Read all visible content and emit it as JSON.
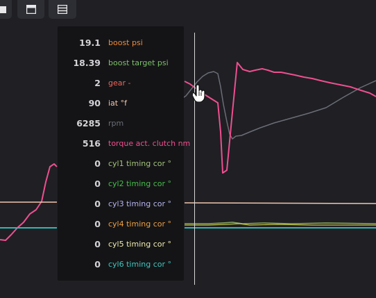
{
  "toolbar": {
    "buttons": [
      {
        "name": "view-single-icon"
      },
      {
        "name": "view-panel-icon"
      },
      {
        "name": "view-stacked-icon"
      }
    ]
  },
  "tooltip": {
    "rows": [
      {
        "value": "19.1",
        "label": "boost psi",
        "color": "#f08a3c"
      },
      {
        "value": "18.39",
        "label": "boost target psi",
        "color": "#7cc06a"
      },
      {
        "value": "2",
        "label": "gear -",
        "color": "#f0645a"
      },
      {
        "value": "90",
        "label": "iat °f",
        "color": "#f2c7ad"
      },
      {
        "value": "6285",
        "label": "rpm",
        "color": "#6b6e77"
      },
      {
        "value": "516",
        "label": "torque act. clutch nm",
        "color": "#ef4f8f"
      },
      {
        "value": "0",
        "label": "cyl1 timing cor °",
        "color": "#a4c47a"
      },
      {
        "value": "0",
        "label": "cyl2 timing cor °",
        "color": "#44c04a"
      },
      {
        "value": "0",
        "label": "cyl3 timing cor °",
        "color": "#b8b6f4"
      },
      {
        "value": "0",
        "label": "cyl4 timing cor °",
        "color": "#f0a040"
      },
      {
        "value": "0",
        "label": "cyl5 timing cor °",
        "color": "#f2eeb0"
      },
      {
        "value": "0",
        "label": "cyl6 timing cor °",
        "color": "#3ec8c0"
      }
    ]
  },
  "chart_data": {
    "type": "line",
    "cursor_x": 280,
    "x_range": [
      0,
      542
    ],
    "y_range": [
      0,
      429
    ],
    "series": [
      {
        "key": "rpm",
        "color": "#6b6e77",
        "width": 1.5,
        "points": [
          [
            262,
            142
          ],
          [
            268,
            138
          ],
          [
            276,
            128
          ],
          [
            284,
            118
          ],
          [
            292,
            110
          ],
          [
            300,
            105
          ],
          [
            308,
            103
          ],
          [
            314,
            106
          ],
          [
            318,
            125
          ],
          [
            322,
            150
          ],
          [
            327,
            175
          ],
          [
            331,
            193
          ],
          [
            335,
            200
          ],
          [
            340,
            196
          ],
          [
            348,
            195
          ],
          [
            360,
            190
          ],
          [
            375,
            184
          ],
          [
            395,
            177
          ],
          [
            420,
            170
          ],
          [
            445,
            163
          ],
          [
            470,
            155
          ],
          [
            495,
            140
          ],
          [
            520,
            126
          ],
          [
            542,
            116
          ]
        ]
      },
      {
        "key": "torque",
        "color": "#ef4f8f",
        "width": 2,
        "points": [
          [
            0,
            345
          ],
          [
            8,
            346
          ],
          [
            16,
            338
          ],
          [
            25,
            328
          ],
          [
            34,
            320
          ],
          [
            43,
            308
          ],
          [
            52,
            302
          ],
          [
            60,
            290
          ],
          [
            66,
            262
          ],
          [
            72,
            240
          ],
          [
            78,
            236
          ],
          [
            82,
            240
          ]
        ]
      },
      {
        "key": "torque",
        "color": "#ef4f8f",
        "width": 2,
        "points": [
          [
            266,
            117
          ],
          [
            274,
            121
          ],
          [
            282,
            127
          ],
          [
            290,
            133
          ],
          [
            298,
            138
          ],
          [
            306,
            143
          ],
          [
            314,
            148
          ],
          [
            318,
            190
          ],
          [
            321,
            249
          ],
          [
            327,
            245
          ],
          [
            334,
            172
          ],
          [
            342,
            90
          ],
          [
            350,
            100
          ],
          [
            360,
            103
          ],
          [
            368,
            101
          ],
          [
            378,
            99
          ],
          [
            386,
            101
          ],
          [
            395,
            104
          ],
          [
            405,
            104
          ],
          [
            415,
            106
          ],
          [
            425,
            108
          ],
          [
            438,
            111
          ],
          [
            450,
            113
          ],
          [
            462,
            116
          ],
          [
            475,
            119
          ],
          [
            490,
            122
          ],
          [
            505,
            125
          ],
          [
            520,
            130
          ],
          [
            533,
            134
          ],
          [
            542,
            139
          ]
        ]
      },
      {
        "key": "iat",
        "color": "#f2c7ad",
        "width": 1.5,
        "points": [
          [
            0,
            291
          ],
          [
            82,
            291
          ]
        ]
      },
      {
        "key": "iat",
        "color": "#f2c7ad",
        "width": 1.5,
        "points": [
          [
            266,
            292
          ],
          [
            542,
            293
          ]
        ]
      },
      {
        "key": "cyl-timing-a",
        "color": "#8aa860",
        "width": 1.5,
        "points": [
          [
            266,
            322
          ],
          [
            300,
            322
          ],
          [
            320,
            321
          ],
          [
            335,
            320
          ],
          [
            350,
            322
          ],
          [
            380,
            321
          ],
          [
            420,
            322
          ],
          [
            470,
            321
          ],
          [
            542,
            322
          ]
        ]
      },
      {
        "key": "cyl-timing-b",
        "color": "#c0c840",
        "width": 1.2,
        "points": [
          [
            266,
            324
          ],
          [
            300,
            324
          ],
          [
            325,
            323
          ],
          [
            345,
            322
          ],
          [
            360,
            324
          ],
          [
            400,
            323
          ],
          [
            450,
            324
          ],
          [
            542,
            324
          ]
        ]
      },
      {
        "key": "cyl-timing-c",
        "color": "#2fb8b4",
        "width": 2,
        "points": [
          [
            0,
            328
          ],
          [
            82,
            328
          ]
        ]
      },
      {
        "key": "cyl-timing-c",
        "color": "#2fb8b4",
        "width": 2,
        "points": [
          [
            266,
            328
          ],
          [
            542,
            328
          ]
        ]
      }
    ]
  }
}
